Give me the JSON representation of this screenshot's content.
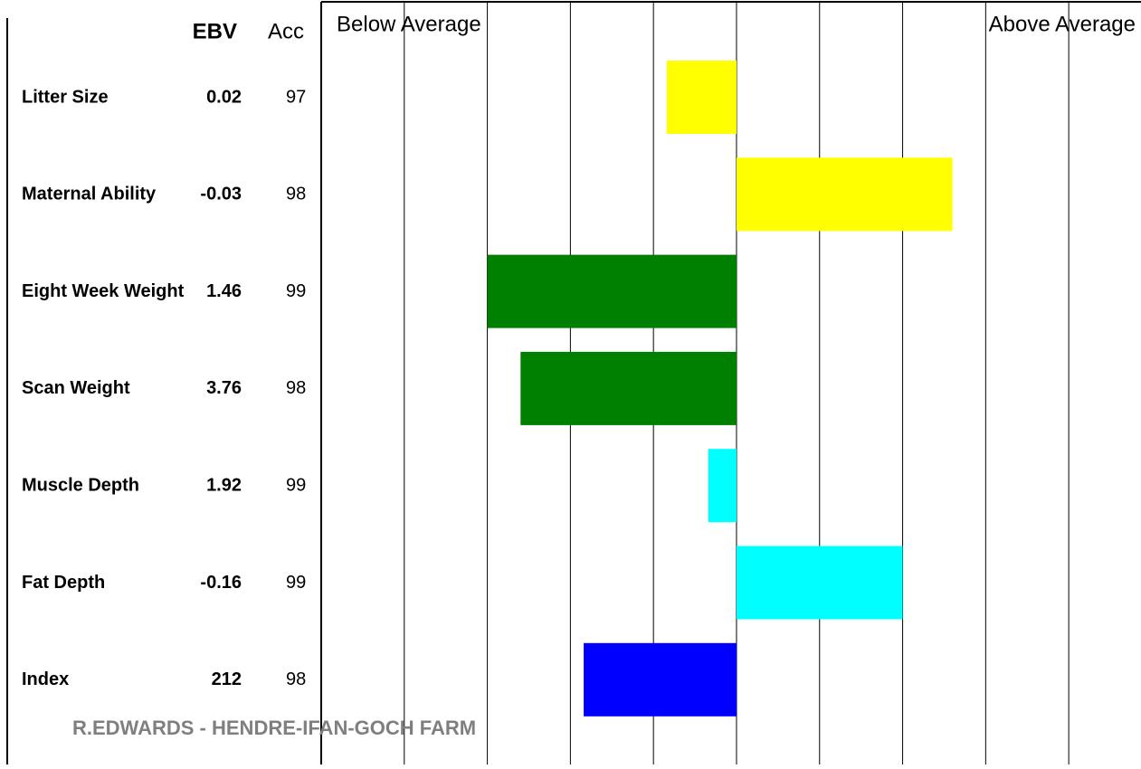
{
  "chart_data": {
    "type": "bar",
    "headers": {
      "ebv": "EBV",
      "acc": "Acc"
    },
    "below_label": "Below Average",
    "above_label": "Above Average",
    "categories": [
      "Litter Size",
      "Maternal Ability",
      "Eight Week Weight",
      "Scan Weight",
      "Muscle Depth",
      "Fat Depth",
      "Index"
    ],
    "ebv": [
      0.02,
      -0.03,
      1.46,
      3.76,
      1.92,
      -0.16,
      212
    ],
    "acc": [
      97,
      98,
      99,
      98,
      99,
      99,
      98
    ],
    "values": [
      -0.84,
      2.6,
      -3.0,
      -2.6,
      -0.34,
      2.0,
      -1.84
    ],
    "colors": [
      "#ffff00",
      "#ffff00",
      "#008000",
      "#008000",
      "#00ffff",
      "#00ffff",
      "#0000ff"
    ],
    "xlim": [
      -5,
      4.87
    ],
    "xticks": [
      -4,
      -3,
      -2,
      -1,
      0,
      1,
      2,
      3,
      4
    ]
  },
  "footer": "R.EDWARDS - HENDRE-IFAN-GOCH FARM"
}
